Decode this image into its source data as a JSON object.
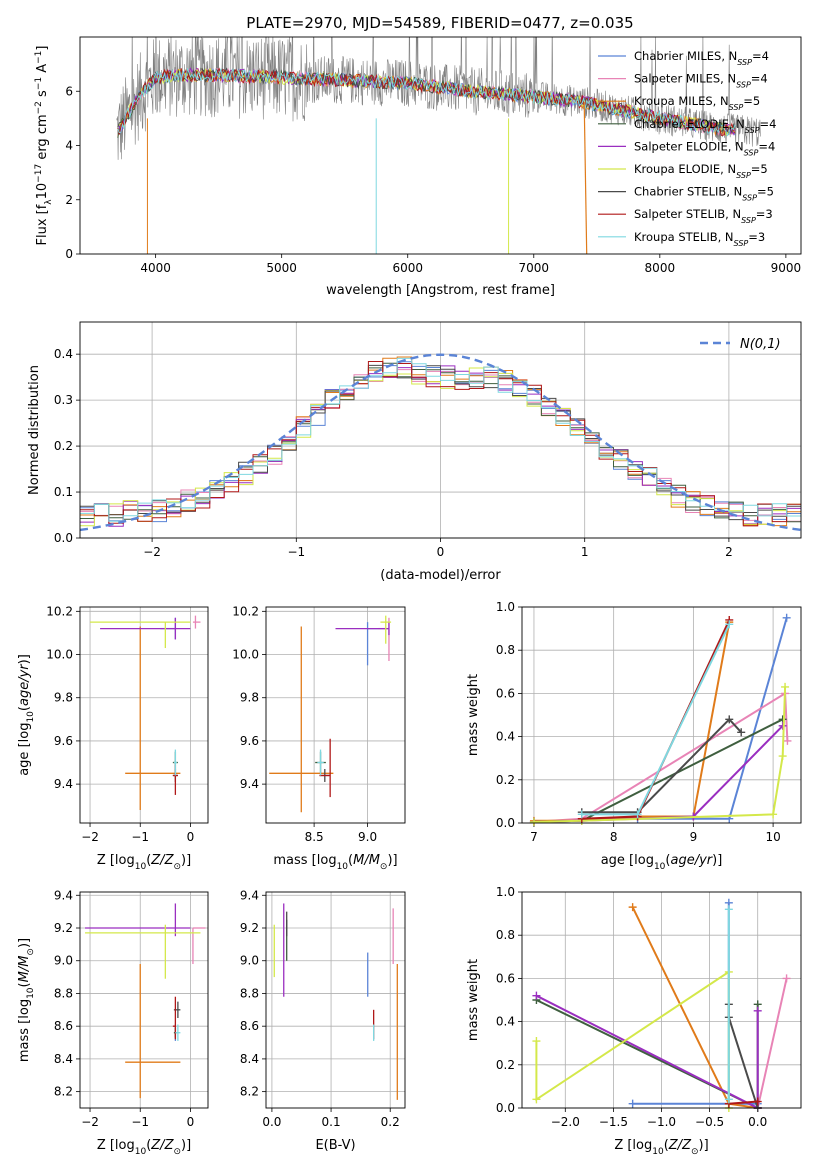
{
  "figure_title": "PLATE=2970, MJD=54589, FIBERID=0477, z=0.035",
  "colors": {
    "Chabrier MILES": "#5b84d6",
    "Salpeter MILES": "#e884b6",
    "Kroupa MILES": "#e07b1a",
    "Chabrier ELODIE": "#3f5f3f",
    "Salpeter ELODIE": "#9a2ec0",
    "Kroupa ELODIE": "#d4e84a",
    "Chabrier STELIB": "#4a4a4a",
    "Salpeter STELIB": "#b01818",
    "Kroupa STELIB": "#7fd8e0",
    "data": "#808080",
    "normal": "#5b84d6"
  },
  "chart_data": [
    {
      "id": "spectrum",
      "type": "line",
      "xlabel": "wavelength [Angstrom, rest frame]",
      "ylabel": "Flux [f_λ 10^-17 erg cm^-2 s^-1 A^-1]",
      "xlim": [
        3400,
        9120
      ],
      "ylim": [
        0,
        8
      ],
      "xticks": [
        4000,
        5000,
        6000,
        7000,
        8000,
        9000
      ],
      "yticks": [
        0,
        2,
        4,
        6
      ],
      "legend_position": "top-right",
      "legend": [
        "Chabrier MILES, N_SSP=4",
        "Salpeter MILES, N_SSP=4",
        "Kroupa MILES, N_SSP=5",
        "Chabrier ELODIE, N_SSP=4",
        "Salpeter ELODIE, N_SSP=4",
        "Kroupa ELODIE, N_SSP=5",
        "Chabrier STELIB, N_SSP=5",
        "Salpeter STELIB, N_SSP=3",
        "Kroupa STELIB, N_SSP=3"
      ],
      "legend_labels": [
        {
          "name": "Chabrier MILES, N",
          "sub": "SSP",
          "tail": "=4"
        },
        {
          "name": "Salpeter MILES, N",
          "sub": "SSP",
          "tail": "=4"
        },
        {
          "name": "Kroupa MILES, N",
          "sub": "SSP",
          "tail": "=5"
        },
        {
          "name": "Chabrier ELODIE, N",
          "sub": "SSP",
          "tail": "=4"
        },
        {
          "name": "Salpeter ELODIE, N",
          "sub": "SSP",
          "tail": "=4"
        },
        {
          "name": "Kroupa ELODIE, N",
          "sub": "SSP",
          "tail": "=5"
        },
        {
          "name": "Chabrier STELIB, N",
          "sub": "SSP",
          "tail": "=5"
        },
        {
          "name": "Salpeter STELIB, N",
          "sub": "SSP",
          "tail": "=3"
        },
        {
          "name": "Kroupa STELIB, N",
          "sub": "SSP",
          "tail": "=3"
        }
      ],
      "continuum": [
        [
          3700,
          4.5
        ],
        [
          3800,
          5.3
        ],
        [
          3900,
          6.0
        ],
        [
          4000,
          6.5
        ],
        [
          4200,
          6.6
        ],
        [
          4500,
          6.6
        ],
        [
          5000,
          6.5
        ],
        [
          5500,
          6.4
        ],
        [
          6000,
          6.3
        ],
        [
          6500,
          6.0
        ],
        [
          7000,
          5.8
        ],
        [
          7400,
          5.6
        ],
        [
          8000,
          5.0
        ],
        [
          8500,
          4.6
        ],
        [
          8800,
          4.5
        ]
      ]
    },
    {
      "id": "residuals",
      "type": "line",
      "xlabel": "(data-model)/error",
      "ylabel": "Normed distribution",
      "xlim": [
        -2.5,
        2.5
      ],
      "ylim": [
        0,
        0.47
      ],
      "xticks": [
        -2,
        -1,
        0,
        1,
        2
      ],
      "yticks": [
        0.0,
        0.1,
        0.2,
        0.3,
        0.4
      ],
      "legend_label": "N(0,1)",
      "bins_edges_from": -2.5,
      "bin_width": 0.1,
      "histogram_mean": [
        0.05,
        0.05,
        0.05,
        0.06,
        0.06,
        0.06,
        0.07,
        0.08,
        0.09,
        0.1,
        0.12,
        0.14,
        0.16,
        0.18,
        0.21,
        0.24,
        0.27,
        0.3,
        0.32,
        0.34,
        0.36,
        0.37,
        0.37,
        0.36,
        0.35,
        0.35,
        0.34,
        0.35,
        0.35,
        0.34,
        0.33,
        0.31,
        0.29,
        0.26,
        0.24,
        0.21,
        0.19,
        0.17,
        0.15,
        0.13,
        0.11,
        0.09,
        0.08,
        0.07,
        0.06,
        0.06,
        0.05,
        0.05,
        0.05,
        0.05
      ]
    },
    {
      "id": "age_vs_Z",
      "type": "scatter",
      "xlabel": "Z [log10(Z/Z☉)]",
      "ylabel": "age [log10(age/yr)]",
      "xlim": [
        -2.2,
        0.35
      ],
      "ylim": [
        9.22,
        10.22
      ],
      "xticks": [
        -2,
        -1,
        0
      ],
      "yticks": [
        9.4,
        9.6,
        9.8,
        10.0,
        10.2
      ],
      "points": [
        {
          "model": "Chabrier MILES",
          "x": -0.3,
          "y": 10.12,
          "xerr": [
            0.3,
            0.0
          ],
          "yerr": [
            0.05,
            0.05
          ]
        },
        {
          "model": "Salpeter MILES",
          "x": 0.1,
          "y": 10.15,
          "xerr": [
            0.05,
            0.1
          ],
          "yerr": [
            0.03,
            0.03
          ]
        },
        {
          "model": "Kroupa MILES",
          "x": -1.0,
          "y": 9.45,
          "xerr": [
            0.3,
            0.8
          ],
          "yerr": [
            0.17,
            0.68
          ]
        },
        {
          "model": "Chabrier ELODIE",
          "x": -0.3,
          "y": 9.5,
          "xerr": [
            0.05,
            0.05
          ],
          "yerr": [
            0.05,
            0.05
          ]
        },
        {
          "model": "Salpeter ELODIE",
          "x": -0.3,
          "y": 10.12,
          "xerr": [
            1.5,
            0.3
          ],
          "yerr": [
            0.05,
            0.05
          ]
        },
        {
          "model": "Kroupa ELODIE",
          "x": -0.5,
          "y": 10.15,
          "xerr": [
            1.5,
            0.5
          ],
          "yerr": [
            0.12,
            0.0
          ]
        },
        {
          "model": "Chabrier STELIB",
          "x": -0.3,
          "y": 9.44,
          "xerr": [
            0.05,
            0.05
          ],
          "yerr": [
            0.03,
            0.03
          ]
        },
        {
          "model": "Salpeter STELIB",
          "x": -0.3,
          "y": 9.44,
          "xerr": [
            0.05,
            0.05
          ],
          "yerr": [
            0.09,
            0.05
          ]
        },
        {
          "model": "Kroupa STELIB",
          "x": -0.3,
          "y": 9.5,
          "xerr": [
            0.03,
            0.03
          ],
          "yerr": [
            0.06,
            0.06
          ]
        }
      ]
    },
    {
      "id": "age_vs_mass",
      "type": "scatter",
      "xlabel": "mass [log10(M/M☉)]",
      "ylabel": "",
      "xlim": [
        8.05,
        9.35
      ],
      "ylim": [
        9.22,
        10.22
      ],
      "xticks": [
        8.5,
        9.0
      ],
      "yticks": [
        9.4,
        9.6,
        9.8,
        10.0,
        10.2
      ],
      "points": [
        {
          "model": "Chabrier MILES",
          "x": 9.0,
          "y": 10.12,
          "xerr": [
            0.0,
            0.2
          ],
          "yerr": [
            0.17,
            0.03
          ]
        },
        {
          "model": "Salpeter MILES",
          "x": 9.2,
          "y": 10.12,
          "xerr": [
            0.1,
            0.0
          ],
          "yerr": [
            0.15,
            0.05
          ]
        },
        {
          "model": "Kroupa MILES",
          "x": 8.38,
          "y": 9.45,
          "xerr": [
            0.3,
            0.3
          ],
          "yerr": [
            0.18,
            0.68
          ]
        },
        {
          "model": "Chabrier ELODIE",
          "x": 8.56,
          "y": 9.5,
          "xerr": [
            0.05,
            0.05
          ],
          "yerr": [
            0.05,
            0.05
          ]
        },
        {
          "model": "Salpeter ELODIE",
          "x": 9.2,
          "y": 10.12,
          "xerr": [
            0.5,
            0.0
          ],
          "yerr": [
            0.03,
            0.03
          ]
        },
        {
          "model": "Kroupa ELODIE",
          "x": 9.17,
          "y": 10.15,
          "xerr": [
            0.05,
            0.05
          ],
          "yerr": [
            0.1,
            0.03
          ]
        },
        {
          "model": "Chabrier STELIB",
          "x": 8.6,
          "y": 9.44,
          "xerr": [
            0.05,
            0.05
          ],
          "yerr": [
            0.03,
            0.03
          ]
        },
        {
          "model": "Salpeter STELIB",
          "x": 8.65,
          "y": 9.44,
          "xerr": [
            0.1,
            0.0
          ],
          "yerr": [
            0.1,
            0.17
          ]
        },
        {
          "model": "Kroupa STELIB",
          "x": 8.56,
          "y": 9.5,
          "xerr": [
            0.03,
            0.03
          ],
          "yerr": [
            0.06,
            0.06
          ]
        }
      ]
    },
    {
      "id": "massweight_vs_age",
      "type": "line",
      "xlabel": "age [log10(age/yr)]",
      "ylabel": "mass weight",
      "xlim": [
        6.85,
        10.35
      ],
      "ylim": [
        0,
        1.0
      ],
      "xticks": [
        7,
        8,
        9,
        10
      ],
      "yticks": [
        0.0,
        0.2,
        0.4,
        0.6,
        0.8,
        1.0
      ],
      "series": [
        {
          "name": "Chabrier MILES",
          "x": [
            7.6,
            8.3,
            9.45,
            10.17
          ],
          "y": [
            0.02,
            0.02,
            0.02,
            0.95
          ]
        },
        {
          "name": "Salpeter MILES",
          "x": [
            7.0,
            7.6,
            10.15,
            10.18
          ],
          "y": [
            0.005,
            0.02,
            0.6,
            0.38
          ]
        },
        {
          "name": "Kroupa MILES",
          "x": [
            7.0,
            7.6,
            8.3,
            9.0,
            9.45
          ],
          "y": [
            0.01,
            0.01,
            0.03,
            0.03,
            0.93
          ]
        },
        {
          "name": "Chabrier ELODIE",
          "x": [
            7.0,
            7.6,
            10.12
          ],
          "y": [
            0.005,
            0.01,
            0.48
          ]
        },
        {
          "name": "Salpeter ELODIE",
          "x": [
            7.0,
            7.6,
            9.0,
            10.12
          ],
          "y": [
            0.005,
            0.01,
            0.03,
            0.45
          ]
        },
        {
          "name": "Kroupa ELODIE",
          "x": [
            7.0,
            7.6,
            10.0,
            10.12,
            10.15
          ],
          "y": [
            0.005,
            0.01,
            0.04,
            0.31,
            0.63
          ]
        },
        {
          "name": "Chabrier STELIB",
          "x": [
            7.6,
            8.3,
            9.45,
            9.6
          ],
          "y": [
            0.05,
            0.05,
            0.48,
            0.42
          ]
        },
        {
          "name": "Salpeter STELIB",
          "x": [
            7.6,
            8.3,
            9.45
          ],
          "y": [
            0.02,
            0.03,
            0.94
          ]
        },
        {
          "name": "Kroupa STELIB",
          "x": [
            7.6,
            8.3,
            9.45
          ],
          "y": [
            0.04,
            0.04,
            0.92
          ]
        }
      ]
    },
    {
      "id": "mass_vs_Z",
      "type": "scatter",
      "xlabel": "Z [log10(Z/Z☉)]",
      "ylabel": "mass [log10(M/M☉)]",
      "xlim": [
        -2.2,
        0.35
      ],
      "ylim": [
        8.1,
        9.42
      ],
      "xticks": [
        -2,
        -1,
        0
      ],
      "yticks": [
        8.2,
        8.4,
        8.6,
        8.8,
        9.0,
        9.2,
        9.4
      ],
      "points": [
        {
          "model": "Chabrier MILES",
          "x": -0.3,
          "y": 8.56,
          "xerr": [
            0.0,
            0.0
          ],
          "yerr": [
            0.05,
            0.05
          ]
        },
        {
          "model": "Salpeter MILES",
          "x": 0.05,
          "y": 9.2,
          "xerr": [
            0.0,
            0.25
          ],
          "yerr": [
            0.22,
            0.0
          ]
        },
        {
          "model": "Kroupa MILES",
          "x": -1.0,
          "y": 8.38,
          "xerr": [
            0.3,
            0.8
          ],
          "yerr": [
            0.22,
            0.6
          ]
        },
        {
          "model": "Chabrier ELODIE",
          "x": -0.3,
          "y": 8.56,
          "xerr": [
            0.03,
            0.03
          ],
          "yerr": [
            0.03,
            0.03
          ]
        },
        {
          "model": "Salpeter ELODIE",
          "x": -0.3,
          "y": 9.2,
          "xerr": [
            1.8,
            0.3
          ],
          "yerr": [
            0.05,
            0.15
          ]
        },
        {
          "model": "Kroupa ELODIE",
          "x": -0.5,
          "y": 9.17,
          "xerr": [
            1.6,
            0.7
          ],
          "yerr": [
            0.28,
            0.05
          ]
        },
        {
          "model": "Chabrier STELIB",
          "x": -0.25,
          "y": 8.7,
          "xerr": [
            0.08,
            0.05
          ],
          "yerr": [
            0.05,
            0.05
          ]
        },
        {
          "model": "Salpeter STELIB",
          "x": -0.3,
          "y": 8.6,
          "xerr": [
            0.05,
            0.0
          ],
          "yerr": [
            0.08,
            0.18
          ]
        },
        {
          "model": "Kroupa STELIB",
          "x": -0.25,
          "y": 8.56,
          "xerr": [
            0.05,
            0.05
          ],
          "yerr": [
            0.05,
            0.05
          ]
        }
      ]
    },
    {
      "id": "mass_vs_EBV",
      "type": "scatter",
      "xlabel": "E(B-V)",
      "ylabel": "",
      "xlim": [
        -0.01,
        0.225
      ],
      "ylim": [
        8.1,
        9.42
      ],
      "xticks": [
        0.0,
        0.1,
        0.2
      ],
      "yticks": [
        8.2,
        8.4,
        8.6,
        8.8,
        9.0,
        9.2,
        9.4
      ],
      "points": [
        {
          "model": "Chabrier MILES",
          "x": 0.162,
          "y": 8.9,
          "xerr": [
            0,
            0
          ],
          "yerr": [
            0.12,
            0.15
          ]
        },
        {
          "model": "Salpeter MILES",
          "x": 0.205,
          "y": 9.2,
          "xerr": [
            0,
            0
          ],
          "yerr": [
            0.22,
            0.12
          ]
        },
        {
          "model": "Kroupa MILES",
          "x": 0.212,
          "y": 8.55,
          "xerr": [
            0,
            0
          ],
          "yerr": [
            0.4,
            0.43
          ]
        },
        {
          "model": "Chabrier ELODIE",
          "x": 0.025,
          "y": 9.2,
          "xerr": [
            0,
            0
          ],
          "yerr": [
            0.2,
            0.05
          ]
        },
        {
          "model": "Salpeter ELODIE",
          "x": 0.02,
          "y": 9.2,
          "xerr": [
            0,
            0
          ],
          "yerr": [
            0.42,
            0.15
          ]
        },
        {
          "model": "Kroupa ELODIE",
          "x": 0.004,
          "y": 9.1,
          "xerr": [
            0,
            0
          ],
          "yerr": [
            0.2,
            0.12
          ]
        },
        {
          "model": "Chabrier STELIB",
          "x": 0.025,
          "y": 9.2,
          "xerr": [
            0,
            0
          ],
          "yerr": [
            0.05,
            0.1
          ]
        },
        {
          "model": "Salpeter STELIB",
          "x": 0.172,
          "y": 8.62,
          "xerr": [
            0,
            0
          ],
          "yerr": [
            0.1,
            0.08
          ]
        },
        {
          "model": "Kroupa STELIB",
          "x": 0.172,
          "y": 8.56,
          "xerr": [
            0,
            0
          ],
          "yerr": [
            0.05,
            0.05
          ]
        }
      ]
    },
    {
      "id": "massweight_vs_Z",
      "type": "line",
      "xlabel": "Z [log10(Z/Z☉)]",
      "ylabel": "mass weight",
      "xlim": [
        -2.45,
        0.45
      ],
      "ylim": [
        0,
        1.0
      ],
      "xticks": [
        -2.0,
        -1.5,
        -1.0,
        -0.5,
        0.0
      ],
      "yticks": [
        0.0,
        0.2,
        0.4,
        0.6,
        0.8,
        1.0
      ],
      "series": [
        {
          "name": "Chabrier MILES",
          "x": [
            -1.3,
            0.0,
            -0.3,
            -0.3
          ],
          "y": [
            0.02,
            0.02,
            0.02,
            0.95
          ]
        },
        {
          "name": "Salpeter MILES",
          "x": [
            0.0,
            0.3,
            0.0
          ],
          "y": [
            0.0,
            0.6,
            0.0
          ]
        },
        {
          "name": "Kroupa MILES",
          "x": [
            -1.3,
            -0.3,
            0.0
          ],
          "y": [
            0.93,
            0.02,
            0.0
          ]
        },
        {
          "name": "Chabrier ELODIE",
          "x": [
            -2.3,
            0.0,
            0.0
          ],
          "y": [
            0.5,
            0.0,
            0.48
          ]
        },
        {
          "name": "Salpeter ELODIE",
          "x": [
            -2.3,
            0.0,
            0.0
          ],
          "y": [
            0.52,
            0.0,
            0.45
          ]
        },
        {
          "name": "Kroupa ELODIE",
          "x": [
            -2.3,
            -2.3,
            -0.3,
            -0.3
          ],
          "y": [
            0.31,
            0.04,
            0.63,
            0.0
          ]
        },
        {
          "name": "Chabrier STELIB",
          "x": [
            -0.3,
            -0.3,
            0.0
          ],
          "y": [
            0.48,
            0.42,
            0.0
          ]
        },
        {
          "name": "Salpeter STELIB",
          "x": [
            -0.3,
            0.0
          ],
          "y": [
            0.02,
            0.03
          ]
        },
        {
          "name": "Kroupa STELIB",
          "x": [
            -0.3,
            -0.3
          ],
          "y": [
            0.92,
            0.04
          ]
        }
      ]
    }
  ]
}
